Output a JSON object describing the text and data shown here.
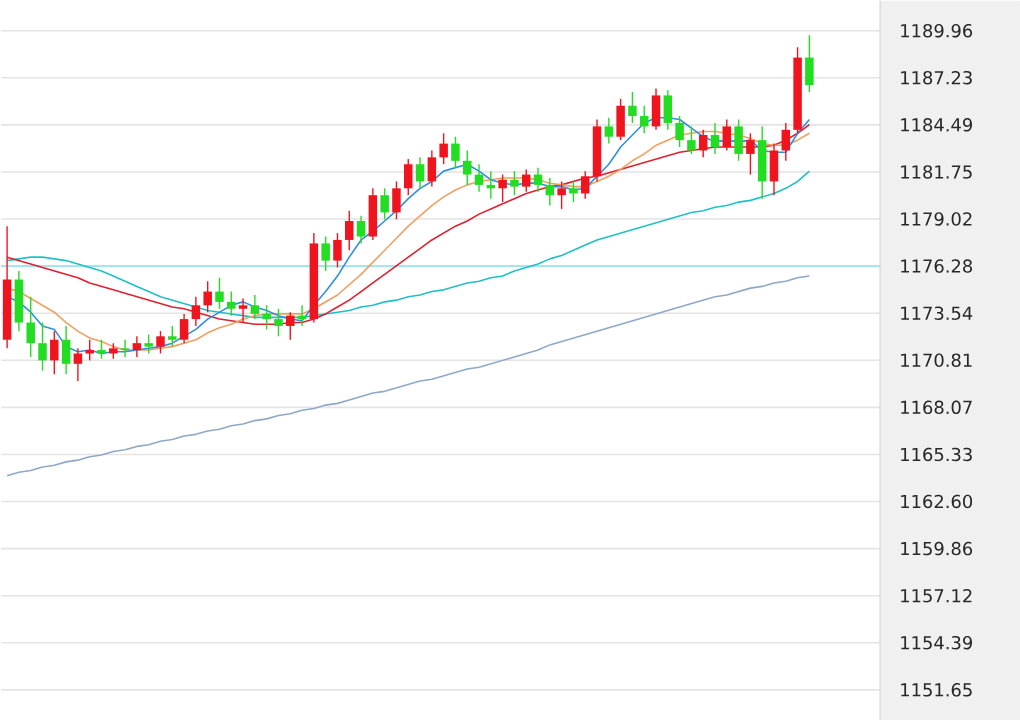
{
  "chart_data": {
    "type": "candlestick",
    "categories": [
      null,
      null,
      null,
      null,
      null,
      null,
      null,
      null,
      null,
      null,
      null,
      null,
      null,
      null,
      null,
      null,
      null,
      null,
      null,
      null,
      null,
      null,
      null,
      null,
      null,
      null,
      null,
      null,
      null,
      null,
      null,
      null,
      null,
      null,
      null,
      null,
      null,
      null,
      null,
      null,
      null,
      null,
      null,
      null,
      null,
      null,
      null,
      null,
      null,
      null,
      null,
      null,
      null,
      null,
      null,
      null,
      null,
      null,
      null,
      null,
      null,
      null,
      null,
      null,
      null,
      null,
      null,
      null,
      null
    ],
    "ohlc": [
      [
        1172.0,
        1178.6,
        1171.5,
        1175.5
      ],
      [
        1175.5,
        1176.0,
        1172.5,
        1173.0
      ],
      [
        1173.0,
        1174.5,
        1171.0,
        1171.8
      ],
      [
        1171.8,
        1173.0,
        1170.2,
        1170.8
      ],
      [
        1170.8,
        1172.5,
        1170.0,
        1172.0
      ],
      [
        1172.0,
        1172.8,
        1170.0,
        1170.6
      ],
      [
        1170.6,
        1171.5,
        1169.6,
        1171.2
      ],
      [
        1171.2,
        1172.0,
        1170.8,
        1171.4
      ],
      [
        1171.4,
        1172.0,
        1170.9,
        1171.2
      ],
      [
        1171.2,
        1171.8,
        1170.9,
        1171.5
      ],
      [
        1171.5,
        1172.0,
        1171.0,
        1171.4
      ],
      [
        1171.4,
        1172.2,
        1171.0,
        1171.8
      ],
      [
        1171.8,
        1172.3,
        1171.2,
        1171.6
      ],
      [
        1171.6,
        1172.5,
        1171.2,
        1172.2
      ],
      [
        1172.2,
        1172.8,
        1171.6,
        1172.0
      ],
      [
        1172.0,
        1173.5,
        1171.8,
        1173.2
      ],
      [
        1173.2,
        1174.5,
        1172.8,
        1174.0
      ],
      [
        1174.0,
        1175.4,
        1173.6,
        1174.8
      ],
      [
        1174.8,
        1175.6,
        1173.8,
        1174.2
      ],
      [
        1174.2,
        1174.8,
        1173.4,
        1173.8
      ],
      [
        1173.8,
        1174.4,
        1173.0,
        1174.0
      ],
      [
        1174.0,
        1174.6,
        1173.2,
        1173.5
      ],
      [
        1173.5,
        1174.0,
        1172.6,
        1173.2
      ],
      [
        1173.2,
        1173.8,
        1172.2,
        1172.8
      ],
      [
        1172.8,
        1173.6,
        1172.0,
        1173.4
      ],
      [
        1173.4,
        1174.0,
        1172.8,
        1173.2
      ],
      [
        1173.2,
        1178.2,
        1173.0,
        1177.6
      ],
      [
        1177.6,
        1178.0,
        1176.0,
        1176.6
      ],
      [
        1176.6,
        1178.2,
        1176.2,
        1177.8
      ],
      [
        1177.8,
        1179.5,
        1177.2,
        1178.9
      ],
      [
        1178.9,
        1179.2,
        1177.6,
        1178.0
      ],
      [
        1178.0,
        1180.8,
        1177.8,
        1180.4
      ],
      [
        1180.4,
        1180.8,
        1179.0,
        1179.4
      ],
      [
        1179.4,
        1181.2,
        1179.0,
        1180.8
      ],
      [
        1180.8,
        1182.5,
        1180.4,
        1182.2
      ],
      [
        1182.2,
        1182.6,
        1180.8,
        1181.2
      ],
      [
        1181.2,
        1183.0,
        1180.9,
        1182.6
      ],
      [
        1182.6,
        1184.0,
        1182.2,
        1183.4
      ],
      [
        1183.4,
        1183.8,
        1182.0,
        1182.4
      ],
      [
        1182.4,
        1183.0,
        1181.0,
        1181.6
      ],
      [
        1181.6,
        1182.2,
        1180.6,
        1181.0
      ],
      [
        1181.0,
        1181.8,
        1180.2,
        1180.8
      ],
      [
        1180.8,
        1181.6,
        1180.0,
        1181.3
      ],
      [
        1181.3,
        1181.8,
        1180.4,
        1180.9
      ],
      [
        1180.9,
        1181.9,
        1180.6,
        1181.6
      ],
      [
        1181.6,
        1182.0,
        1180.6,
        1181.0
      ],
      [
        1181.0,
        1181.4,
        1179.8,
        1180.4
      ],
      [
        1180.4,
        1181.2,
        1179.6,
        1180.8
      ],
      [
        1180.8,
        1181.2,
        1180.0,
        1180.5
      ],
      [
        1180.5,
        1181.8,
        1180.2,
        1181.5
      ],
      [
        1181.5,
        1184.8,
        1181.2,
        1184.4
      ],
      [
        1184.4,
        1184.9,
        1183.4,
        1183.8
      ],
      [
        1183.8,
        1186.0,
        1183.6,
        1185.6
      ],
      [
        1185.6,
        1186.4,
        1184.6,
        1185.0
      ],
      [
        1185.0,
        1185.6,
        1184.0,
        1184.4
      ],
      [
        1184.4,
        1186.6,
        1184.2,
        1186.2
      ],
      [
        1186.2,
        1186.5,
        1184.2,
        1184.6
      ],
      [
        1184.6,
        1185.0,
        1183.2,
        1183.6
      ],
      [
        1183.6,
        1184.4,
        1182.8,
        1183.0
      ],
      [
        1183.0,
        1184.2,
        1182.6,
        1183.9
      ],
      [
        1183.9,
        1184.6,
        1182.8,
        1183.2
      ],
      [
        1183.2,
        1184.8,
        1183.0,
        1184.4
      ],
      [
        1184.4,
        1184.8,
        1182.4,
        1182.8
      ],
      [
        1182.8,
        1184.0,
        1181.6,
        1183.6
      ],
      [
        1183.6,
        1184.4,
        1180.2,
        1181.2
      ],
      [
        1181.2,
        1183.4,
        1180.4,
        1183.0
      ],
      [
        1183.0,
        1184.6,
        1182.4,
        1184.2
      ],
      [
        1184.2,
        1189.0,
        1184.0,
        1188.4
      ],
      [
        1188.4,
        1189.7,
        1186.4,
        1186.8
      ]
    ],
    "colors": [
      "#f0141e",
      "#22dd22",
      "#22dd22",
      "#22dd22",
      "#f0141e",
      "#22dd22",
      "#f0141e",
      "#f0141e",
      "#22dd22",
      "#f0141e",
      "#22dd22",
      "#f0141e",
      "#22dd22",
      "#f0141e",
      "#22dd22",
      "#f0141e",
      "#f0141e",
      "#f0141e",
      "#22dd22",
      "#22dd22",
      "#f0141e",
      "#22dd22",
      "#22dd22",
      "#22dd22",
      "#f0141e",
      "#22dd22",
      "#f0141e",
      "#22dd22",
      "#f0141e",
      "#f0141e",
      "#22dd22",
      "#f0141e",
      "#22dd22",
      "#f0141e",
      "#f0141e",
      "#22dd22",
      "#f0141e",
      "#f0141e",
      "#22dd22",
      "#22dd22",
      "#22dd22",
      "#22dd22",
      "#f0141e",
      "#22dd22",
      "#f0141e",
      "#22dd22",
      "#22dd22",
      "#f0141e",
      "#22dd22",
      "#f0141e",
      "#f0141e",
      "#22dd22",
      "#f0141e",
      "#22dd22",
      "#22dd22",
      "#f0141e",
      "#22dd22",
      "#22dd22",
      "#22dd22",
      "#f0141e",
      "#22dd22",
      "#f0141e",
      "#22dd22",
      "#f0141e",
      "#22dd22",
      "#f0141e",
      "#f0141e",
      "#f0141e",
      "#22dd22"
    ],
    "series": [
      {
        "type": "line",
        "color": "#8fa8c8",
        "values": [
          1164.1,
          1164.3,
          1164.4,
          1164.6,
          1164.7,
          1164.9,
          1165.0,
          1165.2,
          1165.3,
          1165.5,
          1165.6,
          1165.8,
          1165.9,
          1166.1,
          1166.2,
          1166.4,
          1166.5,
          1166.7,
          1166.8,
          1167.0,
          1167.1,
          1167.3,
          1167.4,
          1167.6,
          1167.7,
          1167.9,
          1168.0,
          1168.2,
          1168.3,
          1168.5,
          1168.7,
          1168.9,
          1169.0,
          1169.2,
          1169.4,
          1169.6,
          1169.7,
          1169.9,
          1170.1,
          1170.3,
          1170.4,
          1170.6,
          1170.8,
          1171.0,
          1171.2,
          1171.4,
          1171.7,
          1171.9,
          1172.1,
          1172.3,
          1172.5,
          1172.7,
          1172.9,
          1173.1,
          1173.3,
          1173.5,
          1173.7,
          1173.9,
          1174.1,
          1174.3,
          1174.5,
          1174.6,
          1174.8,
          1175.0,
          1175.1,
          1175.3,
          1175.4,
          1175.6,
          1175.7
        ]
      },
      {
        "type": "line",
        "color": "#20c0c8",
        "values": [
          1176.6,
          1176.7,
          1176.8,
          1176.8,
          1176.7,
          1176.6,
          1176.4,
          1176.2,
          1176.0,
          1175.7,
          1175.4,
          1175.1,
          1174.8,
          1174.5,
          1174.3,
          1174.1,
          1173.9,
          1173.7,
          1173.6,
          1173.5,
          1173.4,
          1173.3,
          1173.3,
          1173.3,
          1173.3,
          1173.3,
          1173.4,
          1173.5,
          1173.6,
          1173.7,
          1173.9,
          1174.0,
          1174.2,
          1174.3,
          1174.5,
          1174.6,
          1174.8,
          1174.9,
          1175.1,
          1175.3,
          1175.4,
          1175.6,
          1175.7,
          1176.0,
          1176.2,
          1176.4,
          1176.7,
          1176.9,
          1177.2,
          1177.5,
          1177.8,
          1178.0,
          1178.2,
          1178.4,
          1178.6,
          1178.8,
          1179.0,
          1179.2,
          1179.4,
          1179.5,
          1179.7,
          1179.8,
          1180.0,
          1180.1,
          1180.3,
          1180.5,
          1180.8,
          1181.2,
          1181.8
        ]
      },
      {
        "type": "line",
        "color": "#e02030",
        "values": [
          1176.8,
          1176.6,
          1176.4,
          1176.2,
          1176.0,
          1175.8,
          1175.6,
          1175.3,
          1175.1,
          1174.9,
          1174.7,
          1174.5,
          1174.3,
          1174.1,
          1173.9,
          1173.8,
          1173.6,
          1173.4,
          1173.2,
          1173.1,
          1173.0,
          1172.9,
          1172.9,
          1172.9,
          1173.0,
          1173.0,
          1173.2,
          1173.5,
          1173.9,
          1174.3,
          1174.8,
          1175.3,
          1175.8,
          1176.3,
          1176.8,
          1177.3,
          1177.8,
          1178.2,
          1178.6,
          1178.9,
          1179.3,
          1179.6,
          1179.9,
          1180.2,
          1180.5,
          1180.7,
          1180.9,
          1181.0,
          1181.2,
          1181.4,
          1181.5,
          1181.7,
          1181.9,
          1182.1,
          1182.3,
          1182.5,
          1182.7,
          1182.9,
          1183.0,
          1183.1,
          1183.2,
          1183.2,
          1183.2,
          1183.2,
          1183.2,
          1183.3,
          1183.6,
          1184.0,
          1184.5
        ]
      },
      {
        "type": "line",
        "color": "#f0a060",
        "values": [
          1175.0,
          1174.8,
          1174.4,
          1174.0,
          1173.6,
          1173.0,
          1172.5,
          1172.1,
          1171.9,
          1171.6,
          1171.4,
          1171.4,
          1171.4,
          1171.5,
          1171.6,
          1171.8,
          1172.0,
          1172.4,
          1172.7,
          1172.9,
          1173.2,
          1173.4,
          1173.5,
          1173.5,
          1173.5,
          1173.5,
          1173.8,
          1174.2,
          1174.6,
          1175.2,
          1175.8,
          1176.5,
          1177.2,
          1177.9,
          1178.6,
          1179.2,
          1179.8,
          1180.3,
          1180.7,
          1181.0,
          1181.2,
          1181.3,
          1181.4,
          1181.4,
          1181.4,
          1181.3,
          1181.1,
          1181.0,
          1180.9,
          1180.9,
          1181.2,
          1181.5,
          1181.9,
          1182.4,
          1182.8,
          1183.3,
          1183.6,
          1183.9,
          1184.0,
          1184.1,
          1184.1,
          1184.0,
          1183.9,
          1183.7,
          1183.4,
          1183.3,
          1183.3,
          1183.6,
          1184.0
        ]
      },
      {
        "type": "line",
        "color": "#3090e0",
        "values": [
          1174.5,
          1174.2,
          1173.6,
          1172.8,
          1172.6,
          1171.6,
          1171.3,
          1171.4,
          1171.2,
          1171.3,
          1171.3,
          1171.4,
          1171.5,
          1171.6,
          1171.8,
          1172.2,
          1172.6,
          1173.2,
          1173.6,
          1174.0,
          1174.2,
          1173.9,
          1173.7,
          1173.4,
          1173.2,
          1173.1,
          1174.0,
          1174.8,
          1175.7,
          1176.8,
          1177.8,
          1178.3,
          1178.9,
          1179.5,
          1180.2,
          1180.8,
          1181.2,
          1181.8,
          1182.0,
          1182.2,
          1181.8,
          1181.3,
          1181.1,
          1181.0,
          1181.1,
          1181.1,
          1180.9,
          1180.9,
          1180.7,
          1180.8,
          1181.5,
          1182.2,
          1183.2,
          1183.9,
          1184.6,
          1184.9,
          1184.9,
          1184.8,
          1184.3,
          1183.8,
          1183.5,
          1183.6,
          1183.5,
          1183.6,
          1183.0,
          1182.9,
          1182.9,
          1184.0,
          1184.8
        ]
      }
    ],
    "ref_lines": [
      {
        "axis": "y",
        "value": 1176.28,
        "color": "#a8e4e8"
      }
    ],
    "ylim": [
      1149.9,
      1191.7
    ],
    "yticks": [
      1151.65,
      1154.39,
      1157.12,
      1159.86,
      {
        "value": 1162.6,
        "label": "1162.60"
      },
      1165.33,
      1168.07,
      1170.81,
      1173.54,
      1176.28,
      1179.02,
      1181.75,
      1184.49,
      1187.23,
      1189.96
    ],
    "grid": "y",
    "marker": "none",
    "line_style": "solid",
    "tick_labels": "y"
  }
}
